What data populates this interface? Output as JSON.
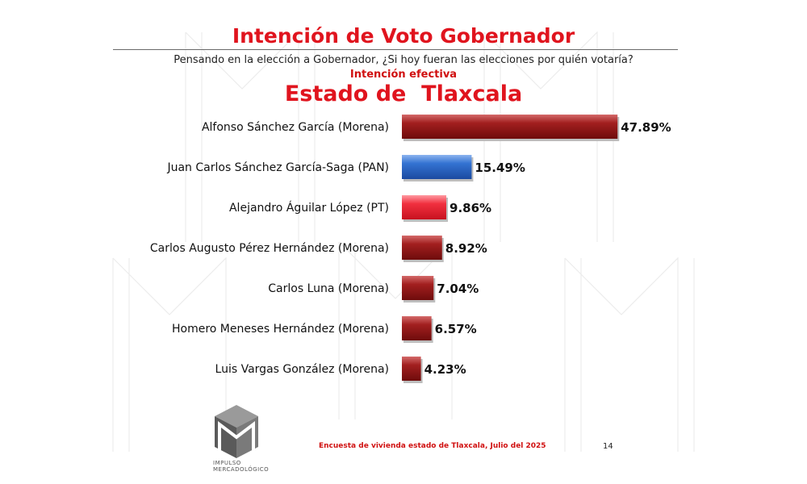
{
  "header": {
    "title": "Intención de Voto Gobernador",
    "question": "Pensando en la elección a Gobernador, ¿Si hoy fueran las elecciones por quién votaría?",
    "subtitle": "Intención efectiva",
    "state": "Estado de  Tlaxcala"
  },
  "chart_data": {
    "type": "bar",
    "orientation": "horizontal",
    "grid": false,
    "xlim": [
      0,
      50
    ],
    "categories": [
      "Alfonso Sánchez García (Morena)",
      "Juan Carlos Sánchez García-Saga (PAN)",
      "Alejandro Águilar López (PT)",
      "Carlos Augusto Pérez Hernández (Morena)",
      "Carlos Luna (Morena)",
      "Homero Meneses Hernández (Morena)",
      "Luis Vargas González (Morena)"
    ],
    "values": [
      47.89,
      15.49,
      9.86,
      8.92,
      7.04,
      6.57,
      4.23
    ],
    "value_labels": [
      "47.89%",
      "15.49%",
      "9.86%",
      "8.92%",
      "7.04%",
      "6.57%",
      "4.23%"
    ],
    "colors": [
      "#8e1616",
      "#2f67c2",
      "#ee2b3a",
      "#8e1616",
      "#8e1616",
      "#8e1616",
      "#8e1616"
    ]
  },
  "logo": {
    "line1": "IMPULSO",
    "line2": "MERCADOLÓGICO"
  },
  "footer": {
    "source": "Encuesta de vivienda estado de Tlaxcala, Julio   del 2025",
    "page": "14"
  }
}
